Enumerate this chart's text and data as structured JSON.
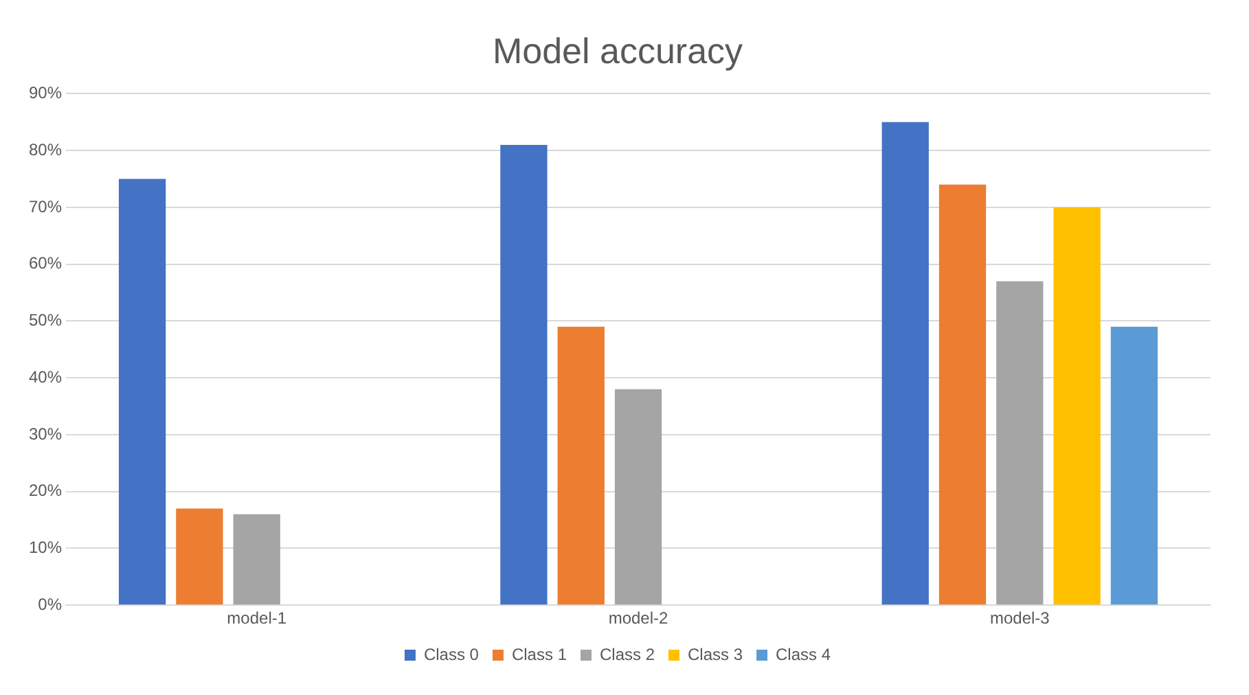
{
  "chart_data": {
    "type": "bar",
    "title": "Model accuracy",
    "categories": [
      "model-1",
      "model-2",
      "model-3"
    ],
    "series": [
      {
        "name": "Class 0",
        "color": "#4472c4",
        "values": [
          75,
          81,
          85
        ]
      },
      {
        "name": "Class 1",
        "color": "#ed7d31",
        "values": [
          17,
          49,
          74
        ]
      },
      {
        "name": "Class 2",
        "color": "#a5a5a5",
        "values": [
          16,
          38,
          57
        ]
      },
      {
        "name": "Class 3",
        "color": "#ffc000",
        "values": [
          null,
          null,
          70
        ]
      },
      {
        "name": "Class 4",
        "color": "#5b9bd5",
        "values": [
          null,
          null,
          49
        ]
      }
    ],
    "ylim": [
      0,
      90
    ],
    "yticks": [
      {
        "value": 0,
        "label": "0%"
      },
      {
        "value": 10,
        "label": "10%"
      },
      {
        "value": 20,
        "label": "20%"
      },
      {
        "value": 30,
        "label": "30%"
      },
      {
        "value": 40,
        "label": "40%"
      },
      {
        "value": 50,
        "label": "50%"
      },
      {
        "value": 60,
        "label": "60%"
      },
      {
        "value": 70,
        "label": "70%"
      },
      {
        "value": 80,
        "label": "80%"
      },
      {
        "value": 90,
        "label": "90%"
      }
    ],
    "grid": "y",
    "legend": "bottom"
  }
}
